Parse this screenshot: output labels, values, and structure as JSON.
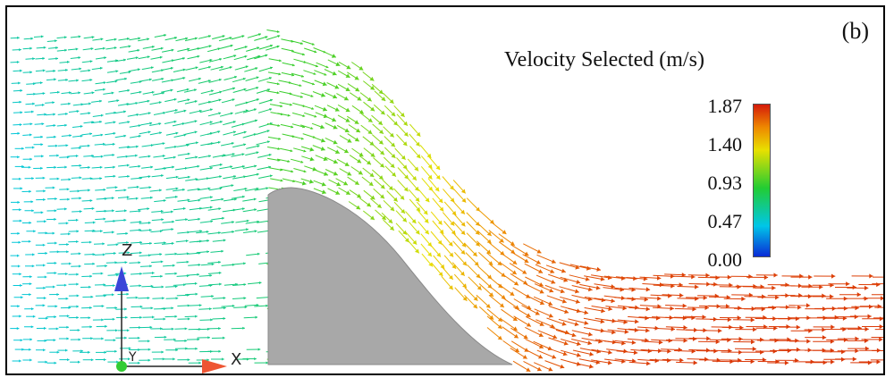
{
  "panel_label": "(b)",
  "legend": {
    "title": "Velocity Selected (m/s)",
    "ticks": [
      "1.87",
      "1.40",
      "0.93",
      "0.47",
      "0.00"
    ],
    "max": 1.87,
    "min": 0.0,
    "colormap": [
      "#0a2bd6",
      "#00c6e8",
      "#22cc33",
      "#e8e000",
      "#ee8800",
      "#d41a0a"
    ]
  },
  "axes_triad": {
    "z_label": "Z",
    "x_label": "X",
    "y_label": "Y",
    "z_color": "#3a46d8",
    "x_color": "#ee5533",
    "y_color": "#33cc33"
  },
  "obstacle_color": "#a8a8a8"
}
